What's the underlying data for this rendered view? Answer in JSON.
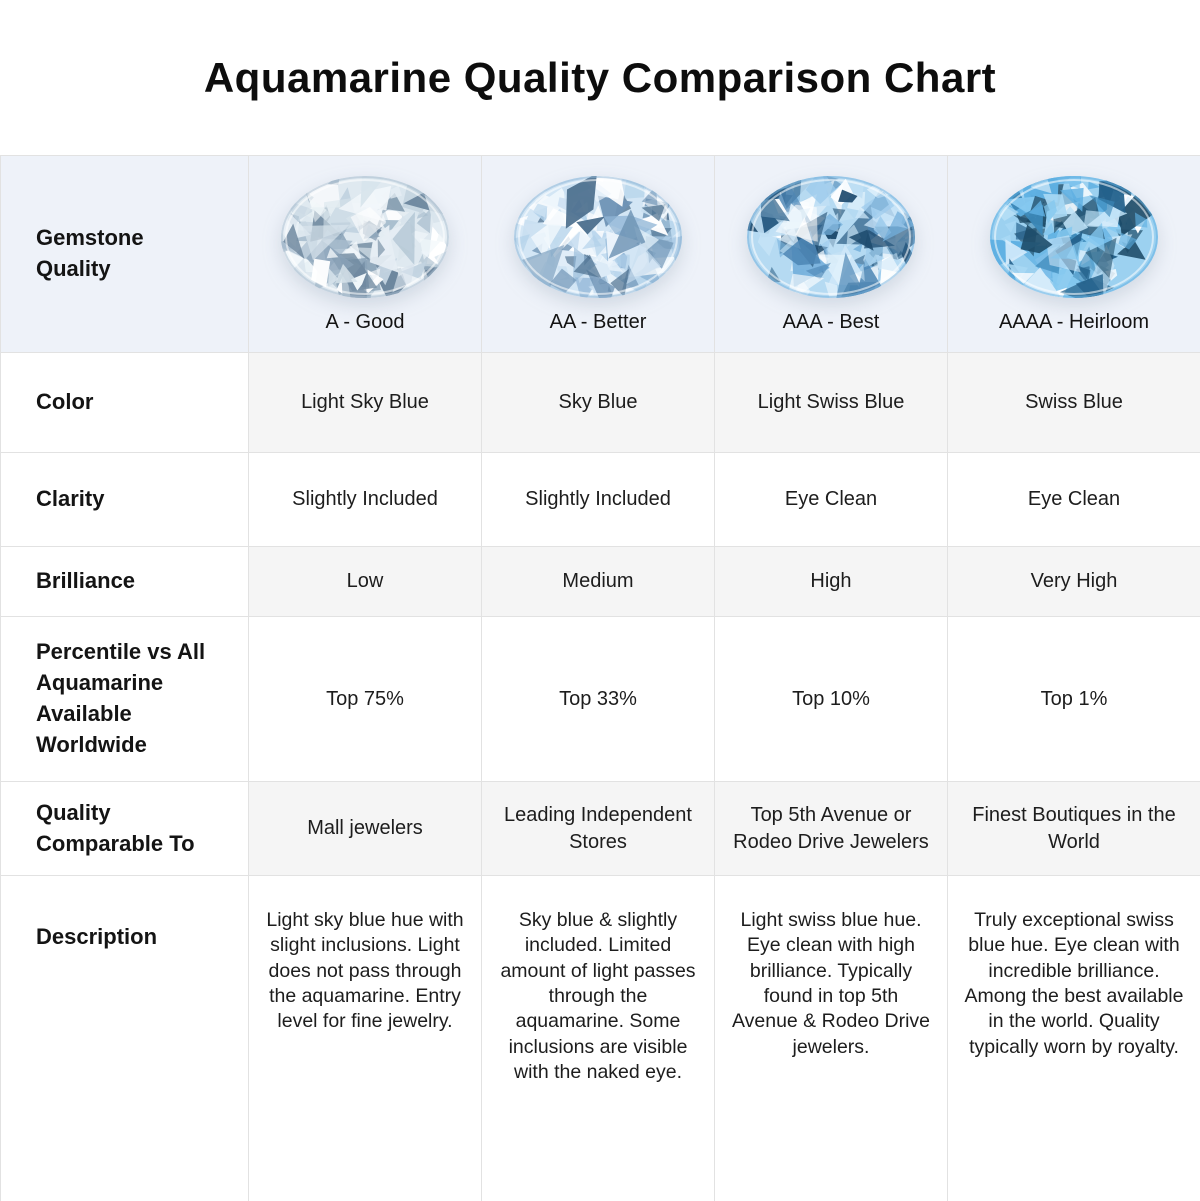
{
  "title": "Aquamarine Quality Comparison Chart",
  "chart_data": {
    "type": "table",
    "title": "Aquamarine Quality Comparison Chart",
    "columns": [
      "Gemstone\nQuality",
      "A - Good",
      "AA - Better",
      "AAA - Best",
      "AAAA - Heirloom"
    ],
    "rows": [
      {
        "label": "Color",
        "values": [
          "Light Sky Blue",
          "Sky Blue",
          "Light Swiss Blue",
          "Swiss Blue"
        ]
      },
      {
        "label": "Clarity",
        "values": [
          "Slightly Included",
          "Slightly Included",
          "Eye Clean",
          "Eye Clean"
        ]
      },
      {
        "label": "Brilliance",
        "values": [
          "Low",
          "Medium",
          "High",
          "Very High"
        ]
      },
      {
        "label": "Percentile vs All\nAquamarine\nAvailable\nWorldwide",
        "values": [
          "Top 75%",
          "Top 33%",
          "Top 10%",
          "Top 1%"
        ]
      },
      {
        "label": "Quality\nComparable To",
        "values": [
          "Mall jewelers",
          "Leading Independent Stores",
          "Top 5th Avenue or Rodeo Drive Jewelers",
          "Finest Boutiques in the World"
        ]
      },
      {
        "label": "Description",
        "values": [
          "Light sky blue hue with slight inclusions. Light does not pass through the aquamarine. Entry level for fine jewelry.",
          "Sky blue & slightly included. Limited amount of light passes through the aquamarine. Some inclusions are visible with the naked eye.",
          "Light swiss blue hue. Eye clean with high brilliance. Typically found in top 5th Avenue & Rodeo Drive jewelers.",
          "Truly exceptional swiss blue hue. Eye clean with incredible brilliance. Among the best available in the world. Quality typically worn by royalty."
        ]
      }
    ]
  },
  "gems": [
    {
      "name": "a-good",
      "base": "#dfe9f0",
      "palette": [
        "#ffffff",
        "#f2f7fa",
        "#d8e4ec",
        "#c2d3e0",
        "#a7bccd",
        "#8ba3b8",
        "#6d879e",
        "#e6eef4"
      ]
    },
    {
      "name": "aa-better",
      "base": "#d3e6f5",
      "palette": [
        "#ffffff",
        "#eef6fc",
        "#c9dff1",
        "#b0d0e9",
        "#8fb5d6",
        "#6f94b5",
        "#4a6d8c",
        "#dcebf7"
      ]
    },
    {
      "name": "aaa-best",
      "base": "#b5daf2",
      "palette": [
        "#ffffff",
        "#e2f1fb",
        "#bfdff4",
        "#9ccbec",
        "#74afdb",
        "#4d86b4",
        "#2a5d84",
        "#1d4a6e",
        "#cce6f8"
      ]
    },
    {
      "name": "aaaa-heirloom",
      "base": "#9cd1f0",
      "palette": [
        "#ffffff",
        "#d8edfb",
        "#a8d8f4",
        "#85c8ef",
        "#5fb0e2",
        "#3c88b8",
        "#24618b",
        "#1c4a66",
        "#bfe3f8"
      ]
    }
  ],
  "colors": {
    "header_bg": "#eef2f9",
    "shaded_row_bg": "#f5f5f5",
    "border": "#e2e2e2",
    "title_text": "#0d0d0d",
    "body_text": "#1d1d1d"
  }
}
